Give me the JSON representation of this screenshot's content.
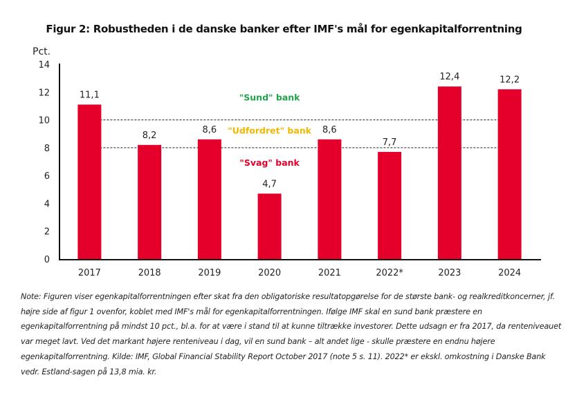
{
  "chart_data": {
    "type": "bar",
    "title": "Figur 2: Robustheden i de danske banker efter IMF's mål for egenkapitalforrentning",
    "ylabel": "Pct.",
    "xlabel": "",
    "categories": [
      "2017",
      "2018",
      "2019",
      "2020",
      "2021",
      "2022*",
      "2023",
      "2024"
    ],
    "values": [
      11.1,
      8.2,
      8.6,
      4.7,
      8.6,
      7.7,
      12.4,
      12.2
    ],
    "value_labels": [
      "11,1",
      "8,2",
      "8,6",
      "4,7",
      "8,6",
      "7,7",
      "12,4",
      "12,2"
    ],
    "ylim": [
      0,
      14
    ],
    "yticks": [
      0,
      2,
      4,
      6,
      8,
      10,
      12,
      14
    ],
    "grid": false,
    "bar_color": "#e4002b",
    "reference_lines": [
      {
        "value": 10,
        "style": "dashed"
      },
      {
        "value": 8,
        "style": "dashed"
      }
    ],
    "annotations": [
      {
        "text": "\"Sund\" bank",
        "color": "#1fa34a",
        "y_value": 11.4
      },
      {
        "text": "\"Udfordret\" bank",
        "color": "#f2b700",
        "y_value": 9.0
      },
      {
        "text": "\"Svag\" bank",
        "color": "#e4002b",
        "y_value": 6.7
      }
    ]
  },
  "note": "Note: Figuren viser egenkapitalforrentningen efter skat fra den obligatoriske resultatopgørelse for de største bank- og realkreditkoncerner, jf. højre side af figur 1 ovenfor, koblet med IMF's mål for egenkapitalforrentningen. Ifølge IMF skal en sund bank præstere en egenkapitalforrentning på mindst 10 pct., bl.a. for at være i stand til at kunne tiltrække investorer. Dette udsagn er fra 2017, da renteniveauet var meget lavt. Ved det markant højere renteniveau i dag, vil en sund bank – alt andet lige - skulle præstere en endnu højere egenkapitalforrentning. Kilde: IMF, Global Financial Stability Report October 2017 (note 5 s. 11). 2022* er ekskl. omkostning i Danske Bank vedr. Estland-sagen på 13,8 mia. kr."
}
